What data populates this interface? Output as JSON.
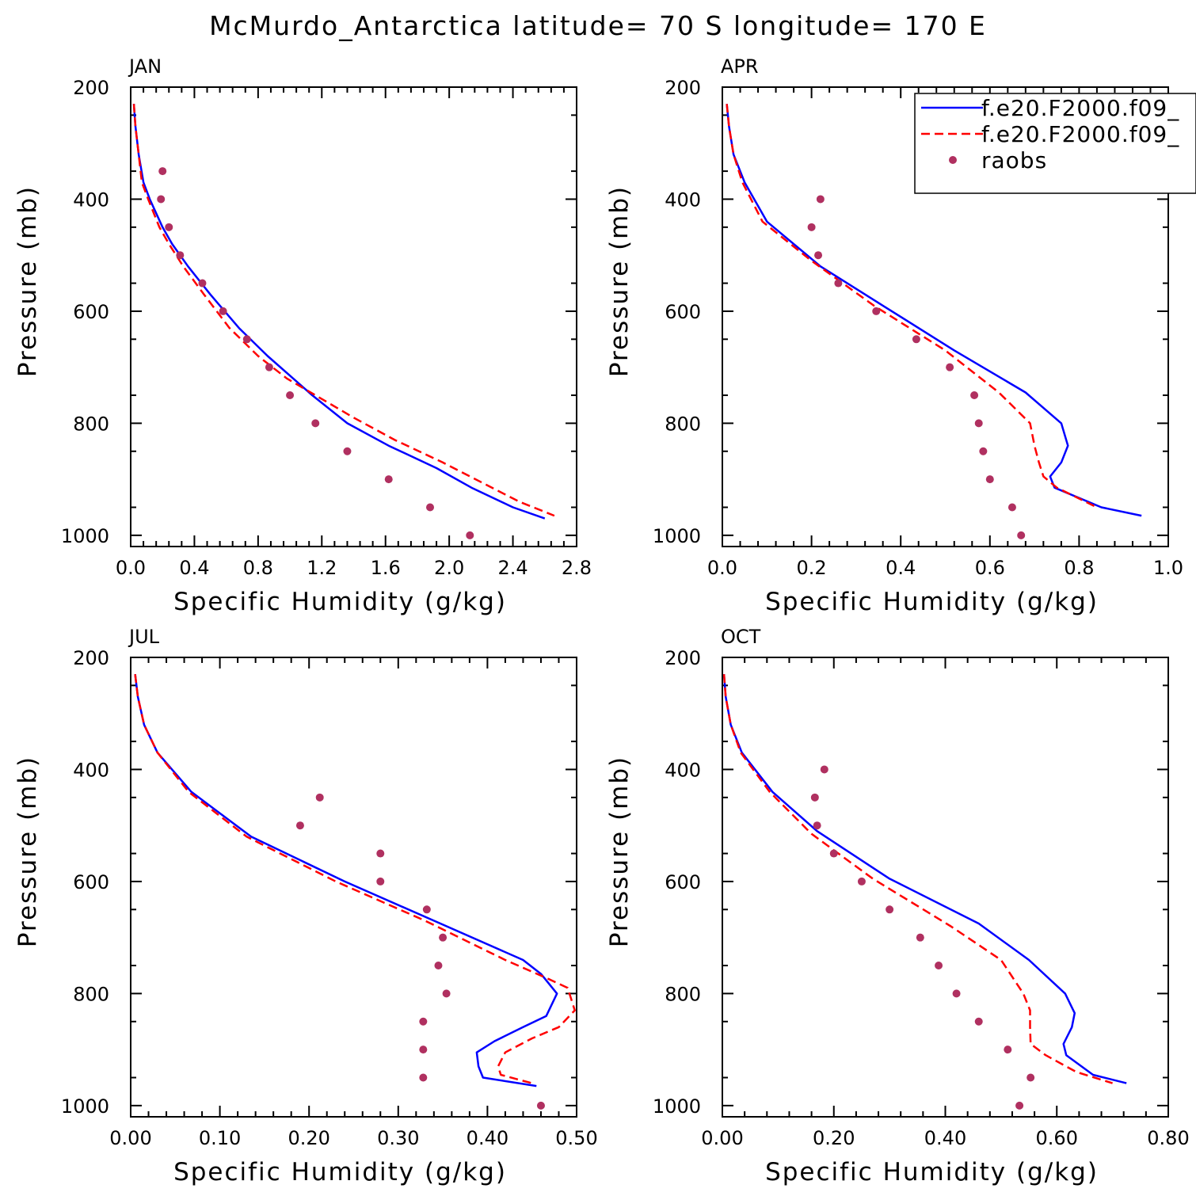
{
  "title": "McMurdo_Antarctica  latitude= 70 S longitude= 170 E",
  "colors": {
    "model_a": "#0000ff",
    "model_b": "#ff0000",
    "raobs": "#b03060",
    "axis": "#000000"
  },
  "legend": {
    "entries": [
      {
        "label": "f.e20.F2000.f09_",
        "style": "solid",
        "color": "#0000ff"
      },
      {
        "label": "f.e20.F2000.f09_",
        "style": "dashed",
        "color": "#ff0000"
      },
      {
        "label": "raobs",
        "style": "marker",
        "color": "#b03060"
      }
    ]
  },
  "chart_data": [
    {
      "type": "line",
      "panel": "JAN",
      "xlabel": "Specific Humidity (g/kg)",
      "ylabel": "Pressure (mb)",
      "xlim": [
        0,
        2.8
      ],
      "ylim": [
        200,
        1020
      ],
      "yinverted": true,
      "xticks": [
        0,
        0.4,
        0.8,
        1.2,
        1.6,
        2.0,
        2.4,
        2.8
      ],
      "xtick_labels": [
        "0.0",
        "0.4",
        "0.8",
        "1.2",
        "1.6",
        "2.0",
        "2.4",
        "2.8"
      ],
      "yticks": [
        200,
        400,
        600,
        800,
        1000
      ],
      "ytick_labels": [
        "200",
        "400",
        "600",
        "800",
        "1000"
      ],
      "series": [
        {
          "name": "f.e20.F2000.f09_",
          "style": "solid",
          "x": [
            0.02,
            0.03,
            0.05,
            0.08,
            0.12,
            0.2,
            0.26,
            0.36,
            0.5,
            0.68,
            0.86,
            1.02,
            1.14,
            1.36,
            1.62,
            1.92,
            2.14,
            2.4,
            2.6
          ],
          "y": [
            230,
            270,
            320,
            370,
            400,
            450,
            480,
            520,
            570,
            630,
            680,
            720,
            750,
            800,
            840,
            880,
            915,
            950,
            970
          ]
        },
        {
          "name": "f.e20.F2000.f09_",
          "style": "dashed",
          "x": [
            0.02,
            0.03,
            0.05,
            0.07,
            0.11,
            0.18,
            0.24,
            0.33,
            0.46,
            0.62,
            0.8,
            0.98,
            1.16,
            1.4,
            1.66,
            1.96,
            2.2,
            2.44,
            2.66
          ],
          "y": [
            230,
            270,
            320,
            370,
            400,
            450,
            480,
            520,
            570,
            630,
            680,
            720,
            750,
            790,
            830,
            870,
            905,
            940,
            965
          ]
        },
        {
          "name": "raobs",
          "style": "marker",
          "x": [
            0.2,
            0.19,
            0.24,
            0.31,
            0.45,
            0.58,
            0.73,
            0.87,
            1.0,
            1.16,
            1.36,
            1.62,
            1.88,
            2.13
          ],
          "y": [
            350,
            400,
            450,
            500,
            550,
            600,
            650,
            700,
            750,
            800,
            850,
            900,
            950,
            1000
          ]
        }
      ]
    },
    {
      "type": "line",
      "panel": "APR",
      "xlabel": "Specific Humidity (g/kg)",
      "ylabel": "Pressure (mb)",
      "xlim": [
        0,
        1.0
      ],
      "ylim": [
        200,
        1020
      ],
      "yinverted": true,
      "xticks": [
        0,
        0.2,
        0.4,
        0.6,
        0.8,
        1.0
      ],
      "xtick_labels": [
        "0.0",
        "0.2",
        "0.4",
        "0.6",
        "0.8",
        "1.0"
      ],
      "yticks": [
        200,
        400,
        600,
        800,
        1000
      ],
      "ytick_labels": [
        "200",
        "400",
        "600",
        "800",
        "1000"
      ],
      "series": [
        {
          "name": "f.e20.F2000.f09_",
          "style": "solid",
          "x": [
            0.01,
            0.015,
            0.025,
            0.05,
            0.1,
            0.22,
            0.36,
            0.52,
            0.68,
            0.76,
            0.775,
            0.76,
            0.735,
            0.745,
            0.85,
            0.94
          ],
          "y": [
            230,
            270,
            320,
            370,
            440,
            520,
            590,
            670,
            745,
            800,
            840,
            870,
            895,
            915,
            950,
            965
          ]
        },
        {
          "name": "f.e20.F2000.f09_",
          "style": "dashed",
          "x": [
            0.01,
            0.015,
            0.025,
            0.045,
            0.09,
            0.2,
            0.34,
            0.5,
            0.62,
            0.69,
            0.7,
            0.71,
            0.72,
            0.75,
            0.84
          ],
          "y": [
            230,
            270,
            320,
            370,
            440,
            510,
            590,
            670,
            745,
            800,
            840,
            870,
            895,
            915,
            950
          ]
        },
        {
          "name": "raobs",
          "style": "marker",
          "x": [
            0.22,
            0.2,
            0.215,
            0.26,
            0.345,
            0.435,
            0.51,
            0.565,
            0.575,
            0.585,
            0.6,
            0.65,
            0.67
          ],
          "y": [
            400,
            450,
            500,
            550,
            600,
            650,
            700,
            750,
            800,
            850,
            900,
            950,
            1000
          ]
        }
      ]
    },
    {
      "type": "line",
      "panel": "JUL",
      "xlabel": "Specific Humidity (g/kg)",
      "ylabel": "Pressure (mb)",
      "xlim": [
        0,
        0.5
      ],
      "ylim": [
        200,
        1020
      ],
      "yinverted": true,
      "xticks": [
        0,
        0.1,
        0.2,
        0.3,
        0.4,
        0.5
      ],
      "xtick_labels": [
        "0.00",
        "0.10",
        "0.20",
        "0.30",
        "0.40",
        "0.50"
      ],
      "yticks": [
        200,
        400,
        600,
        800,
        1000
      ],
      "ytick_labels": [
        "200",
        "400",
        "600",
        "800",
        "1000"
      ],
      "series": [
        {
          "name": "f.e20.F2000.f09_",
          "style": "solid",
          "x": [
            0.005,
            0.008,
            0.015,
            0.03,
            0.068,
            0.135,
            0.24,
            0.34,
            0.44,
            0.46,
            0.478,
            0.466,
            0.44,
            0.408,
            0.388,
            0.39,
            0.395,
            0.455
          ],
          "y": [
            230,
            270,
            320,
            370,
            440,
            520,
            600,
            670,
            740,
            765,
            800,
            840,
            860,
            885,
            905,
            930,
            950,
            965
          ]
        },
        {
          "name": "f.e20.F2000.f09_",
          "style": "dashed",
          "x": [
            0.005,
            0.008,
            0.015,
            0.03,
            0.065,
            0.13,
            0.23,
            0.33,
            0.42,
            0.47,
            0.49,
            0.498,
            0.48,
            0.45,
            0.42,
            0.412,
            0.415,
            0.45
          ],
          "y": [
            230,
            270,
            320,
            370,
            440,
            520,
            600,
            670,
            740,
            775,
            790,
            830,
            860,
            880,
            905,
            930,
            945,
            960
          ]
        },
        {
          "name": "raobs",
          "style": "marker",
          "x": [
            0.212,
            0.19,
            0.28,
            0.28,
            0.332,
            0.35,
            0.345,
            0.354,
            0.328,
            0.328,
            0.328,
            0.46
          ],
          "y": [
            450,
            500,
            550,
            600,
            650,
            700,
            750,
            800,
            850,
            900,
            950,
            1000
          ]
        }
      ]
    },
    {
      "type": "line",
      "panel": "OCT",
      "xlabel": "Specific Humidity (g/kg)",
      "ylabel": "Pressure (mb)",
      "xlim": [
        0,
        0.8
      ],
      "ylim": [
        200,
        1020
      ],
      "yinverted": true,
      "xticks": [
        0,
        0.2,
        0.4,
        0.6,
        0.8
      ],
      "xtick_labels": [
        "0.00",
        "0.20",
        "0.40",
        "0.60",
        "0.80"
      ],
      "yticks": [
        200,
        400,
        600,
        800,
        1000
      ],
      "ytick_labels": [
        "200",
        "400",
        "600",
        "800",
        "1000"
      ],
      "series": [
        {
          "name": "f.e20.F2000.f09_",
          "style": "solid",
          "x": [
            0.003,
            0.006,
            0.015,
            0.035,
            0.09,
            0.17,
            0.3,
            0.46,
            0.55,
            0.615,
            0.632,
            0.627,
            0.612,
            0.617,
            0.665,
            0.725
          ],
          "y": [
            230,
            270,
            320,
            370,
            440,
            510,
            595,
            675,
            740,
            800,
            835,
            860,
            890,
            910,
            945,
            960
          ]
        },
        {
          "name": "f.e20.F2000.f09_",
          "style": "dashed",
          "x": [
            0.003,
            0.006,
            0.015,
            0.033,
            0.085,
            0.16,
            0.27,
            0.41,
            0.5,
            0.54,
            0.552,
            0.552,
            0.553,
            0.58,
            0.635,
            0.7
          ],
          "y": [
            230,
            270,
            320,
            370,
            440,
            515,
            595,
            680,
            740,
            800,
            830,
            860,
            890,
            910,
            940,
            960
          ]
        },
        {
          "name": "raobs",
          "style": "marker",
          "x": [
            0.183,
            0.166,
            0.17,
            0.2,
            0.25,
            0.3,
            0.355,
            0.388,
            0.42,
            0.46,
            0.512,
            0.553,
            0.533
          ],
          "y": [
            400,
            450,
            500,
            550,
            600,
            650,
            700,
            750,
            800,
            850,
            900,
            950,
            1000
          ]
        }
      ]
    }
  ]
}
